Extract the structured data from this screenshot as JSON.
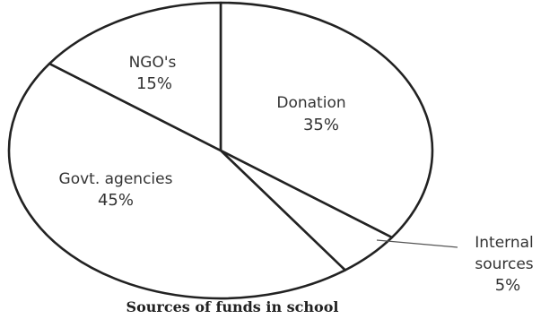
{
  "chart_data": {
    "type": "pie",
    "title": "Sources of funds in school",
    "categories": [
      "Donation",
      "Internal sources",
      "Govt. agencies",
      "NGO's"
    ],
    "values": [
      35,
      5,
      45,
      15
    ],
    "value_labels": [
      "35%",
      "5%",
      "45%",
      "15%"
    ],
    "start_angle_deg": 0,
    "direction": "clockwise",
    "fill_color": "#ffffff",
    "stroke_color": "#222222",
    "legend": "none"
  }
}
